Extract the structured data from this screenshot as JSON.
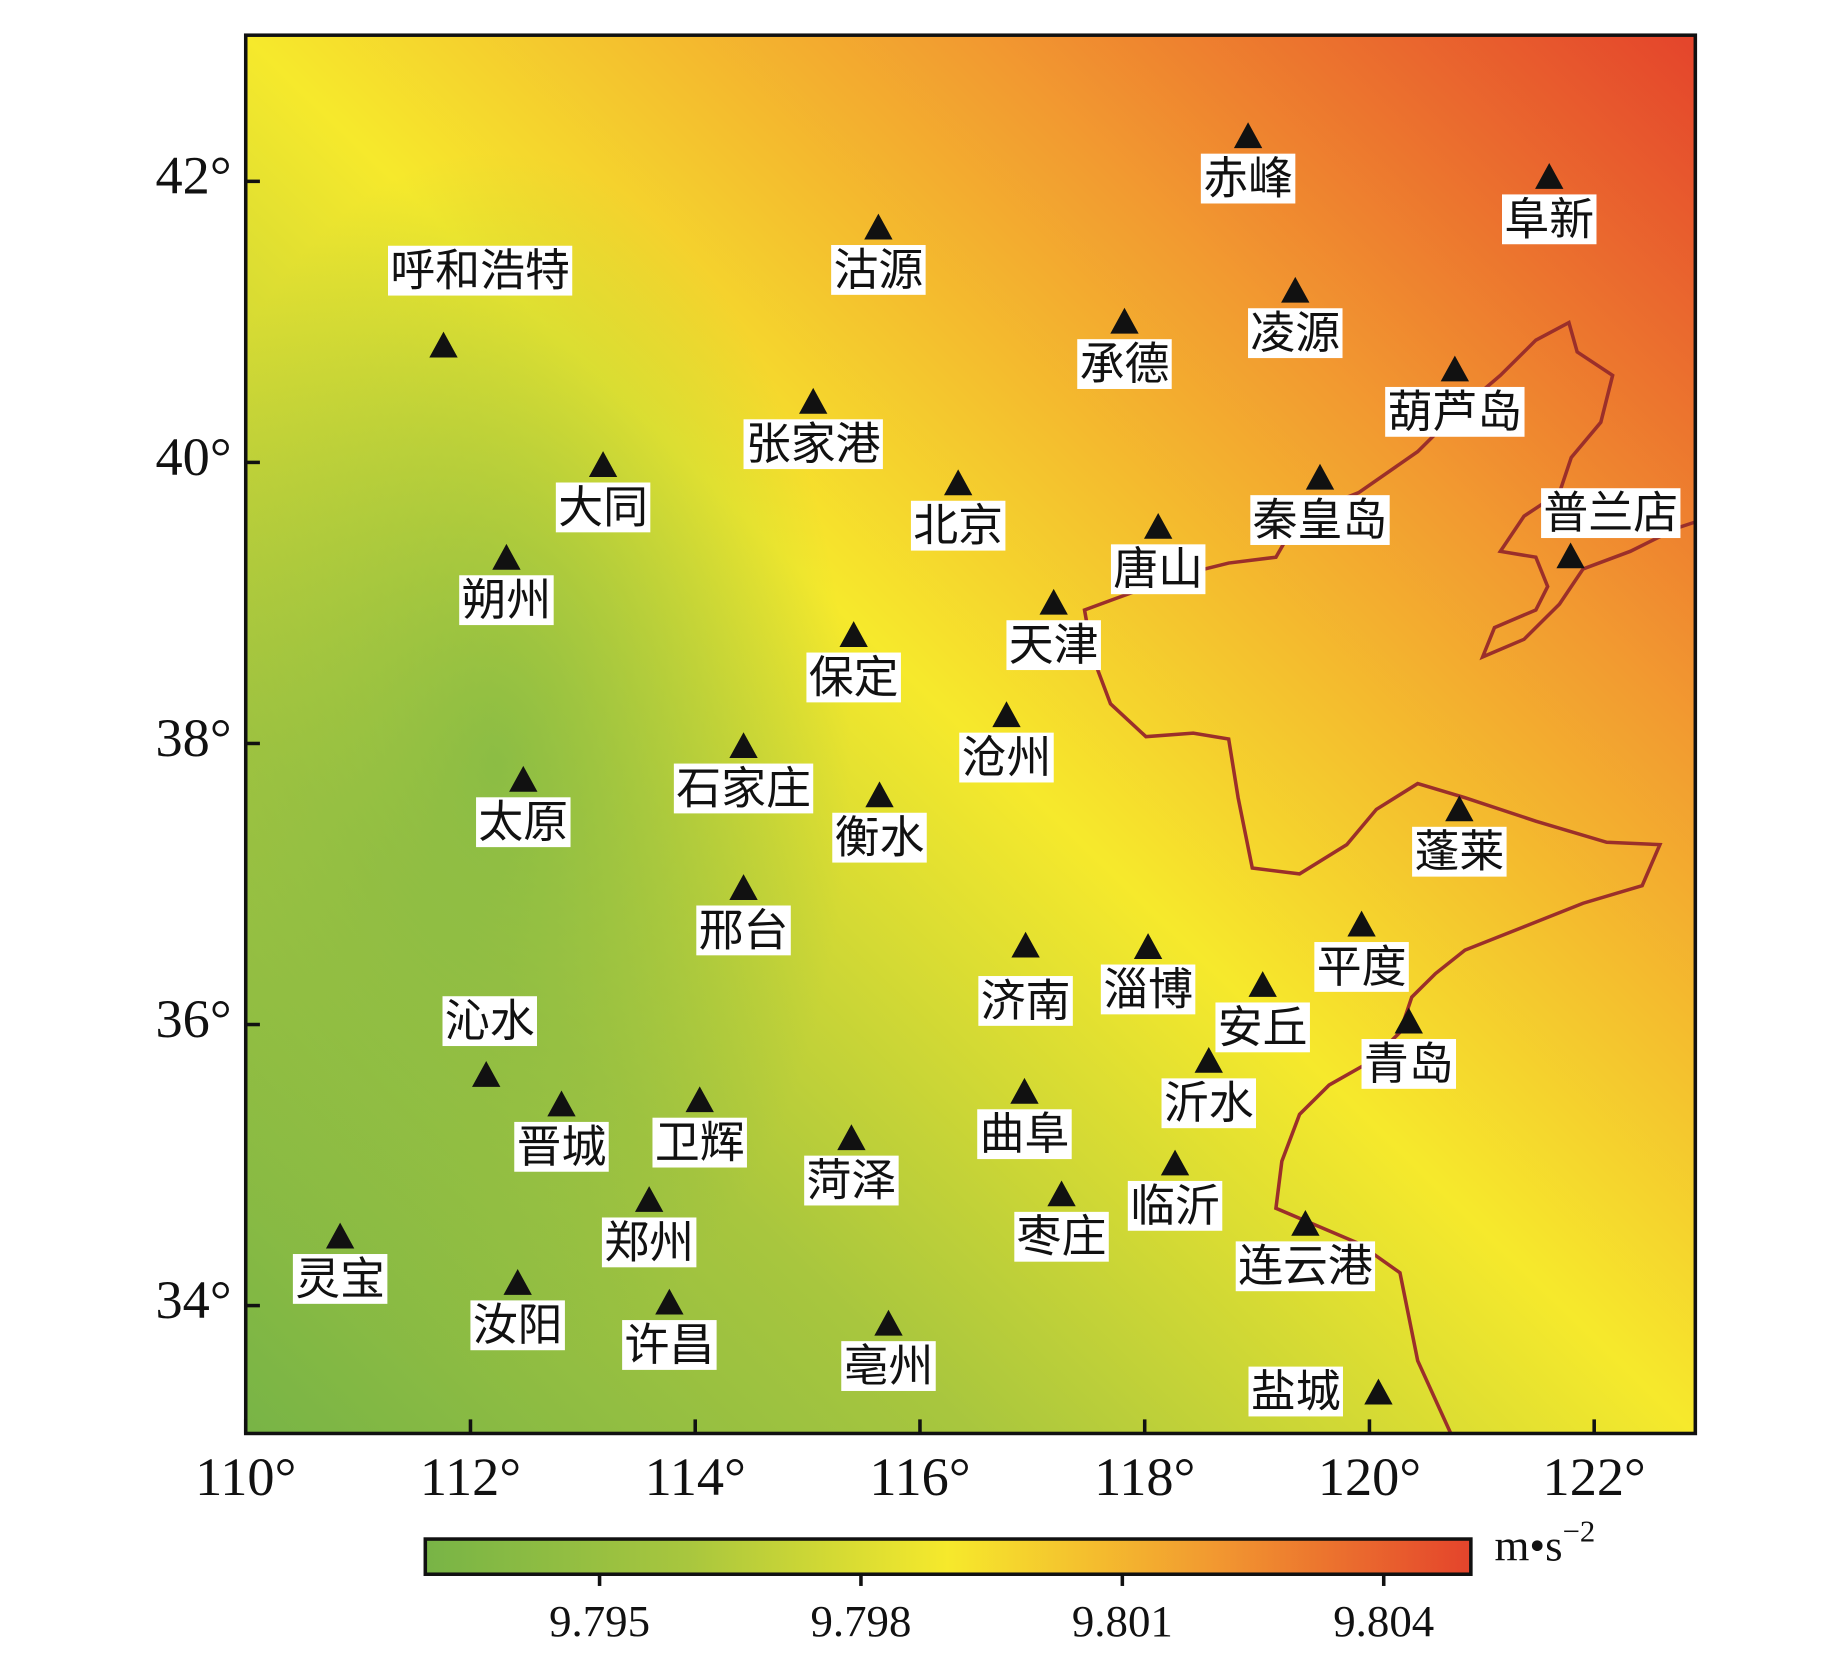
{
  "map": {
    "xaxis": {
      "xlim": [
        110,
        122.9
      ],
      "xticks": [
        {
          "value": 110,
          "label": "110°"
        },
        {
          "value": 112,
          "label": "112°"
        },
        {
          "value": 114,
          "label": "114°"
        },
        {
          "value": 116,
          "label": "116°"
        },
        {
          "value": 118,
          "label": "118°"
        },
        {
          "value": 120,
          "label": "120°"
        },
        {
          "value": 122,
          "label": "122°"
        }
      ]
    },
    "yaxis": {
      "ylim": [
        33.09,
        43.04
      ],
      "yticks": [
        {
          "value": 34,
          "label": "34°"
        },
        {
          "value": 36,
          "label": "36°"
        },
        {
          "value": 38,
          "label": "38°"
        },
        {
          "value": 40,
          "label": "40°"
        },
        {
          "value": 42,
          "label": "42°"
        }
      ]
    },
    "stations": [
      {
        "name": "赤峰",
        "lon": 118.92,
        "lat": 42.32
      },
      {
        "name": "阜新",
        "lon": 121.6,
        "lat": 42.03
      },
      {
        "name": "沽源",
        "lon": 115.63,
        "lat": 41.67
      },
      {
        "name": "呼和浩特",
        "lon": 111.76,
        "lat": 40.83
      },
      {
        "name": "凌源",
        "lon": 119.34,
        "lat": 41.22
      },
      {
        "name": "承德",
        "lon": 117.82,
        "lat": 41.0
      },
      {
        "name": "葫芦岛",
        "lon": 120.76,
        "lat": 40.66
      },
      {
        "name": "张家港",
        "lon": 115.05,
        "lat": 40.43
      },
      {
        "name": "大同",
        "lon": 113.18,
        "lat": 39.98
      },
      {
        "name": "北京",
        "lon": 116.34,
        "lat": 39.85
      },
      {
        "name": "秦皇岛",
        "lon": 119.56,
        "lat": 39.89
      },
      {
        "name": "普兰店",
        "lon": 121.79,
        "lat": 39.33
      },
      {
        "name": "唐山",
        "lon": 118.12,
        "lat": 39.54
      },
      {
        "name": "朔州",
        "lon": 112.32,
        "lat": 39.32
      },
      {
        "name": "天津",
        "lon": 117.19,
        "lat": 39.0
      },
      {
        "name": "保定",
        "lon": 115.41,
        "lat": 38.77
      },
      {
        "name": "沧州",
        "lon": 116.77,
        "lat": 38.2
      },
      {
        "name": "石家庄",
        "lon": 114.43,
        "lat": 37.98
      },
      {
        "name": "太原",
        "lon": 112.47,
        "lat": 37.74
      },
      {
        "name": "衡水",
        "lon": 115.64,
        "lat": 37.63
      },
      {
        "name": "蓬莱",
        "lon": 120.8,
        "lat": 37.53
      },
      {
        "name": "邢台",
        "lon": 114.43,
        "lat": 36.97
      },
      {
        "name": "平度",
        "lon": 119.93,
        "lat": 36.71
      },
      {
        "name": "济南",
        "lon": 116.94,
        "lat": 36.56
      },
      {
        "name": "淄博",
        "lon": 118.03,
        "lat": 36.55
      },
      {
        "name": "安丘",
        "lon": 119.05,
        "lat": 36.28
      },
      {
        "name": "沁水",
        "lon": 112.14,
        "lat": 35.64
      },
      {
        "name": "青岛",
        "lon": 120.35,
        "lat": 36.02
      },
      {
        "name": "沂水",
        "lon": 118.57,
        "lat": 35.74
      },
      {
        "name": "晋城",
        "lon": 112.81,
        "lat": 35.43
      },
      {
        "name": "卫辉",
        "lon": 114.04,
        "lat": 35.46
      },
      {
        "name": "曲阜",
        "lon": 116.93,
        "lat": 35.52
      },
      {
        "name": "菏泽",
        "lon": 115.39,
        "lat": 35.19
      },
      {
        "name": "临沂",
        "lon": 118.27,
        "lat": 35.01
      },
      {
        "name": "枣庄",
        "lon": 117.26,
        "lat": 34.79
      },
      {
        "name": "郑州",
        "lon": 113.59,
        "lat": 34.75
      },
      {
        "name": "连云港",
        "lon": 119.43,
        "lat": 34.58
      },
      {
        "name": "灵宝",
        "lon": 110.84,
        "lat": 34.49
      },
      {
        "name": "汝阳",
        "lon": 112.42,
        "lat": 34.16
      },
      {
        "name": "许昌",
        "lon": 113.77,
        "lat": 34.02
      },
      {
        "name": "亳州",
        "lon": 115.72,
        "lat": 33.87
      },
      {
        "name": "盐城",
        "lon": 120.08,
        "lat": 33.38
      }
    ],
    "colorbar": {
      "clim": [
        9.793,
        9.805
      ],
      "ticks": [
        9.795,
        9.798,
        9.801,
        9.804
      ],
      "unit": {
        "base": "m•s",
        "exponent": "−2"
      },
      "colors": [
        "#78b446",
        "#a8c63e",
        "#f6e92c",
        "#f29a30",
        "#e4442c"
      ]
    }
  }
}
